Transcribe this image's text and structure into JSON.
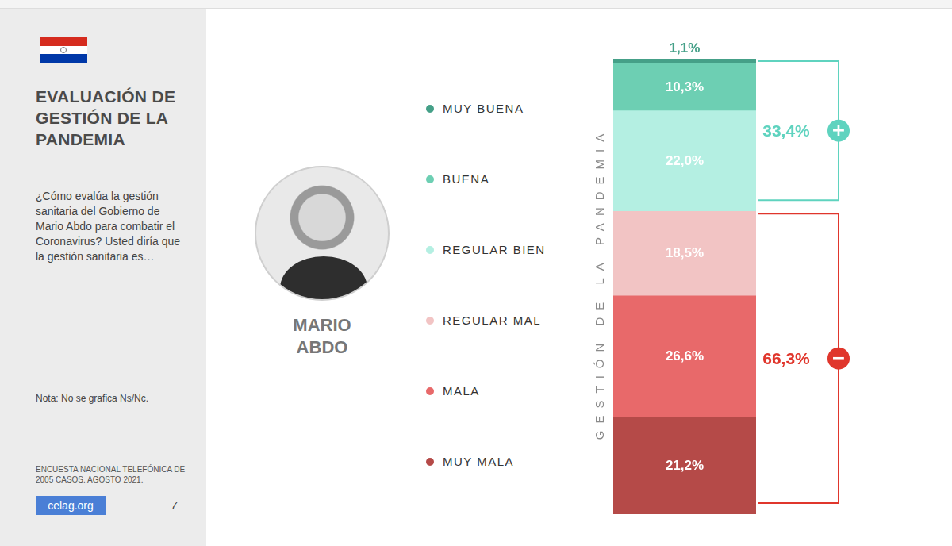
{
  "header": {
    "title": "EVALUACIÓN DE GESTIÓN DE LA PANDEMIA",
    "question": "¿Cómo evalúa la gestión sanitaria del Gobierno de Mario Abdo para combatir el Coronavirus? Usted diría que la gestión sanitaria es…"
  },
  "person": "MARIO ABDO",
  "note": "Nota: No se grafica Ns/Nc.",
  "source": "ENCUESTA NACIONAL TELEFÓNICA DE 2005 CASOS. AGOSTO 2021.",
  "logo": "celag.org",
  "page_number": 7,
  "chart_data": {
    "type": "bar",
    "stacked": true,
    "data_labels": true,
    "tick_labels": false,
    "legend": "left",
    "y_label": "GESTIÓN DE LA PANDEMIA",
    "categories": [
      null
    ],
    "ylim": [
      0,
      99.7
    ],
    "series": [
      {
        "name": "MUY BUENA",
        "color": "#45a088",
        "values": [
          1.1
        ],
        "value_labels": [
          "1,1%"
        ]
      },
      {
        "name": "BUENA",
        "color": "#6dcfb3",
        "values": [
          10.3
        ],
        "value_labels": [
          "10,3%"
        ]
      },
      {
        "name": "REGULAR BIEN",
        "color": "#b4efe2",
        "values": [
          22.0
        ],
        "value_labels": [
          "22,0%"
        ]
      },
      {
        "name": "REGULAR MAL",
        "color": "#f2c4c4",
        "values": [
          18.5
        ],
        "value_labels": [
          "18,5%"
        ]
      },
      {
        "name": "MALA",
        "color": "#e8696a",
        "values": [
          26.6
        ],
        "value_labels": [
          "26,6%"
        ]
      },
      {
        "name": "MUY MALA",
        "color": "#b54a48",
        "values": [
          21.2
        ],
        "value_labels": [
          "21,2%"
        ]
      }
    ],
    "groups": [
      {
        "sign": "+",
        "value": 33.4,
        "label": "33,4%",
        "color": "#5fd3bf",
        "members": [
          "MUY BUENA",
          "BUENA",
          "REGULAR BIEN"
        ]
      },
      {
        "sign": "−",
        "value": 66.3,
        "label": "66,3%",
        "color": "#e0362c",
        "members": [
          "REGULAR MAL",
          "MALA",
          "MUY MALA"
        ]
      }
    ]
  }
}
